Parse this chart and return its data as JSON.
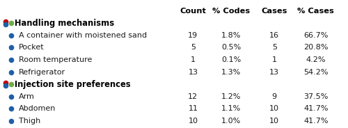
{
  "rows": [
    {
      "label": "Handling mechanisms",
      "is_header": true,
      "count": "",
      "pct_codes": "",
      "cases": "",
      "pct_cases": "",
      "bullet_color": null
    },
    {
      "label": "A container with moistened sand",
      "is_header": false,
      "count": "19",
      "pct_codes": "1.8%",
      "cases": "16",
      "pct_cases": "66.7%",
      "bullet_color": "#1f5fa6"
    },
    {
      "label": "Pocket",
      "is_header": false,
      "count": "5",
      "pct_codes": "0.5%",
      "cases": "5",
      "pct_cases": "20.8%",
      "bullet_color": "#1f5fa6"
    },
    {
      "label": "Room temperature",
      "is_header": false,
      "count": "1",
      "pct_codes": "0.1%",
      "cases": "1",
      "pct_cases": "4.2%",
      "bullet_color": "#1f5fa6"
    },
    {
      "label": "Refrigerator",
      "is_header": false,
      "count": "13",
      "pct_codes": "1.3%",
      "cases": "13",
      "pct_cases": "54.2%",
      "bullet_color": "#1f5fa6"
    },
    {
      "label": "Injection site preferences",
      "is_header": true,
      "count": "",
      "pct_codes": "",
      "cases": "",
      "pct_cases": "",
      "bullet_color": null
    },
    {
      "label": "Arm",
      "is_header": false,
      "count": "12",
      "pct_codes": "1.2%",
      "cases": "9",
      "pct_cases": "37.5%",
      "bullet_color": "#1f5fa6"
    },
    {
      "label": "Abdomen",
      "is_header": false,
      "count": "11",
      "pct_codes": "1.1%",
      "cases": "10",
      "pct_cases": "41.7%",
      "bullet_color": "#1f5fa6"
    },
    {
      "label": "Thigh",
      "is_header": false,
      "count": "10",
      "pct_codes": "1.0%",
      "cases": "10",
      "pct_cases": "41.7%",
      "bullet_color": "#1f5fa6"
    }
  ],
  "col_positions": {
    "count": 0.555,
    "pct_codes": 0.665,
    "cases": 0.79,
    "pct_cases": 0.91
  },
  "bg_color": "#ffffff",
  "header_font_size": 8.2,
  "row_font_size": 8.0,
  "header_color": "#000000",
  "data_color": "#1a1a1a",
  "bold_color": "#000000",
  "cluster_icon_colors": [
    "#c00000",
    "#1f5fa6",
    "#70ad47"
  ]
}
